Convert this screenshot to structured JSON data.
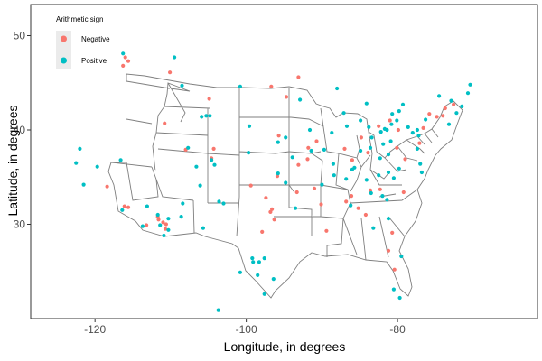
{
  "chart_data": {
    "type": "scatter",
    "title": "",
    "xlabel": "Longitude, in degrees",
    "ylabel": "Latitude, in degrees",
    "xlim": [
      -128.5,
      -61.5
    ],
    "ylim": [
      20.0,
      53.3
    ],
    "xticks": [
      -120,
      -100,
      -80
    ],
    "yticks": [
      30,
      40,
      50
    ],
    "xtick_labels": [
      "-120",
      "-100",
      "-80"
    ],
    "ytick_labels": [
      "30",
      "40",
      "50"
    ],
    "grid": false,
    "legend": {
      "title": "Arithmetic sign",
      "position": "top-left",
      "entries": [
        {
          "name": "Negative",
          "color": "#F8766D"
        },
        {
          "name": "Positive",
          "color": "#00BFC4"
        }
      ]
    },
    "series": [
      {
        "name": "Negative",
        "color": "#F8766D",
        "points": [
          [
            -116.0,
            47.7
          ],
          [
            -116.3,
            46.8
          ],
          [
            -115.6,
            47.3
          ],
          [
            -110.1,
            46.1
          ],
          [
            -96.7,
            44.6
          ],
          [
            -94.7,
            43.5
          ],
          [
            -93.1,
            45.6
          ],
          [
            -116.1,
            31.9
          ],
          [
            -115.6,
            31.8
          ],
          [
            -118.4,
            34.0
          ],
          [
            -111.6,
            30.5
          ],
          [
            -111.0,
            30.2
          ],
          [
            -110.7,
            29.5
          ],
          [
            -111.7,
            30.8
          ],
          [
            -110.6,
            30.0
          ],
          [
            -113.2,
            29.9
          ],
          [
            -108.0,
            37.9
          ],
          [
            -104.6,
            37.0
          ],
          [
            -104.3,
            38.0
          ],
          [
            -99.4,
            34.1
          ],
          [
            -97.4,
            32.8
          ],
          [
            -96.6,
            31.6
          ],
          [
            -96.8,
            31.3
          ],
          [
            -96.3,
            30.5
          ],
          [
            -93.1,
            36.3
          ],
          [
            -93.3,
            33.4
          ],
          [
            -91.0,
            33.8
          ],
          [
            -90.1,
            32.1
          ],
          [
            -89.4,
            29.3
          ],
          [
            -86.8,
            32.4
          ],
          [
            -85.2,
            31.7
          ],
          [
            -84.2,
            31.0
          ],
          [
            -82.3,
            33.7
          ],
          [
            -79.2,
            33.4
          ],
          [
            -80.7,
            29.1
          ],
          [
            -81.2,
            27.2
          ],
          [
            -80.4,
            25.2
          ],
          [
            -87.0,
            38.0
          ],
          [
            -86.0,
            36.8
          ],
          [
            -83.9,
            37.6
          ],
          [
            -82.5,
            40.4
          ],
          [
            -81.0,
            41.0
          ],
          [
            -79.9,
            40.0
          ],
          [
            -76.6,
            40.2
          ],
          [
            -75.8,
            41.7
          ],
          [
            -74.8,
            41.4
          ],
          [
            -74.0,
            41.5
          ],
          [
            -73.7,
            42.3
          ],
          [
            -72.6,
            42.7
          ],
          [
            -77.1,
            38.6
          ],
          [
            -79.0,
            36.9
          ],
          [
            -80.1,
            38.1
          ],
          [
            -95.7,
            39.4
          ],
          [
            -90.7,
            38.8
          ],
          [
            -91.8,
            38.1
          ],
          [
            -84.8,
            39.2
          ],
          [
            -104.9,
            43.3
          ],
          [
            -97.9,
            29.2
          ],
          [
            -86.1,
            33.0
          ],
          [
            -91.9,
            36.9
          ],
          [
            -83.6,
            33.6
          ],
          [
            -95.9,
            35.1
          ],
          [
            -110.8,
            40.7
          ]
        ]
      },
      {
        "name": "Positive",
        "color": "#00BFC4",
        "points": [
          [
            -116.3,
            48.1
          ],
          [
            -109.5,
            47.7
          ],
          [
            -108.5,
            44.7
          ],
          [
            -105.9,
            41.4
          ],
          [
            -104.8,
            41.5
          ],
          [
            -122.0,
            38.0
          ],
          [
            -119.7,
            36.1
          ],
          [
            -116.6,
            36.8
          ],
          [
            -122.5,
            36.5
          ],
          [
            -121.5,
            34.2
          ],
          [
            -116.4,
            31.5
          ],
          [
            -113.7,
            29.8
          ],
          [
            -111.4,
            29.9
          ],
          [
            -110.3,
            29.4
          ],
          [
            -110.9,
            28.8
          ],
          [
            -110.3,
            30.6
          ],
          [
            -111.7,
            31.0
          ],
          [
            -113.1,
            31.9
          ],
          [
            -108.4,
            32.2
          ],
          [
            -108.6,
            30.8
          ],
          [
            -105.7,
            29.6
          ],
          [
            -104.6,
            36.8
          ],
          [
            -104.2,
            36.3
          ],
          [
            -106.6,
            36.1
          ],
          [
            -106.1,
            34.1
          ],
          [
            -103.6,
            32.4
          ],
          [
            -103.0,
            32.2
          ],
          [
            -100.8,
            24.9
          ],
          [
            -99.2,
            26.4
          ],
          [
            -98.3,
            26.0
          ],
          [
            -97.6,
            26.4
          ],
          [
            -98.5,
            24.6
          ],
          [
            -96.4,
            24.2
          ],
          [
            -97.6,
            22.6
          ],
          [
            -103.7,
            20.9
          ],
          [
            -99.1,
            26.0
          ],
          [
            -100.8,
            44.6
          ],
          [
            -95.8,
            38.7
          ],
          [
            -94.8,
            39.2
          ],
          [
            -88.7,
            39.7
          ],
          [
            -90.0,
            34.2
          ],
          [
            -88.5,
            36.4
          ],
          [
            -86.8,
            34.8
          ],
          [
            -86.0,
            35.8
          ],
          [
            -88.4,
            35.2
          ],
          [
            -85.7,
            36.0
          ],
          [
            -86.2,
            32.0
          ],
          [
            -84.1,
            34.7
          ],
          [
            -83.5,
            33.3
          ],
          [
            -82.0,
            33.0
          ],
          [
            -81.4,
            32.6
          ],
          [
            -81.2,
            30.6
          ],
          [
            -79.5,
            26.6
          ],
          [
            -79.7,
            22.2
          ],
          [
            -80.5,
            23.1
          ],
          [
            -83.2,
            29.6
          ],
          [
            -84.9,
            37.8
          ],
          [
            -83.6,
            38.1
          ],
          [
            -82.3,
            37.0
          ],
          [
            -81.9,
            38.5
          ],
          [
            -83.4,
            39.2
          ],
          [
            -83.8,
            40.3
          ],
          [
            -81.7,
            40.1
          ],
          [
            -80.1,
            41.0
          ],
          [
            -82.2,
            39.8
          ],
          [
            -81.4,
            40.0
          ],
          [
            -80.8,
            40.6
          ],
          [
            -78.6,
            40.3
          ],
          [
            -77.4,
            38.0
          ],
          [
            -77.2,
            39.4
          ],
          [
            -78.0,
            39.7
          ],
          [
            -80.9,
            38.8
          ],
          [
            -81.2,
            37.4
          ],
          [
            -82.5,
            35.2
          ],
          [
            -81.2,
            35.5
          ],
          [
            -80.5,
            34.9
          ],
          [
            -76.8,
            35.5
          ],
          [
            -77.0,
            36.4
          ],
          [
            -79.8,
            35.9
          ],
          [
            -87.1,
            41.8
          ],
          [
            -86.7,
            40.4
          ],
          [
            -84.9,
            41.0
          ],
          [
            -84.1,
            42.8
          ],
          [
            -80.7,
            41.7
          ],
          [
            -79.8,
            42.0
          ],
          [
            -74.5,
            43.6
          ],
          [
            -72.9,
            43.1
          ],
          [
            -71.5,
            42.5
          ],
          [
            -70.7,
            43.9
          ],
          [
            -70.4,
            44.8
          ],
          [
            -72.2,
            41.8
          ],
          [
            -73.2,
            40.6
          ],
          [
            -76.3,
            41.1
          ],
          [
            -77.4,
            40.0
          ],
          [
            -79.3,
            42.7
          ],
          [
            -88.0,
            44.4
          ],
          [
            -92.9,
            43.2
          ],
          [
            -91.6,
            40.0
          ],
          [
            -91.4,
            37.8
          ],
          [
            -89.7,
            37.9
          ],
          [
            -93.9,
            37.1
          ],
          [
            -95.8,
            35.4
          ],
          [
            -94.8,
            34.4
          ],
          [
            -93.5,
            31.7
          ],
          [
            -99.6,
            40.4
          ],
          [
            -99.7,
            37.6
          ],
          [
            -105.3,
            41.5
          ],
          [
            -107.7,
            38.1
          ]
        ]
      }
    ]
  }
}
